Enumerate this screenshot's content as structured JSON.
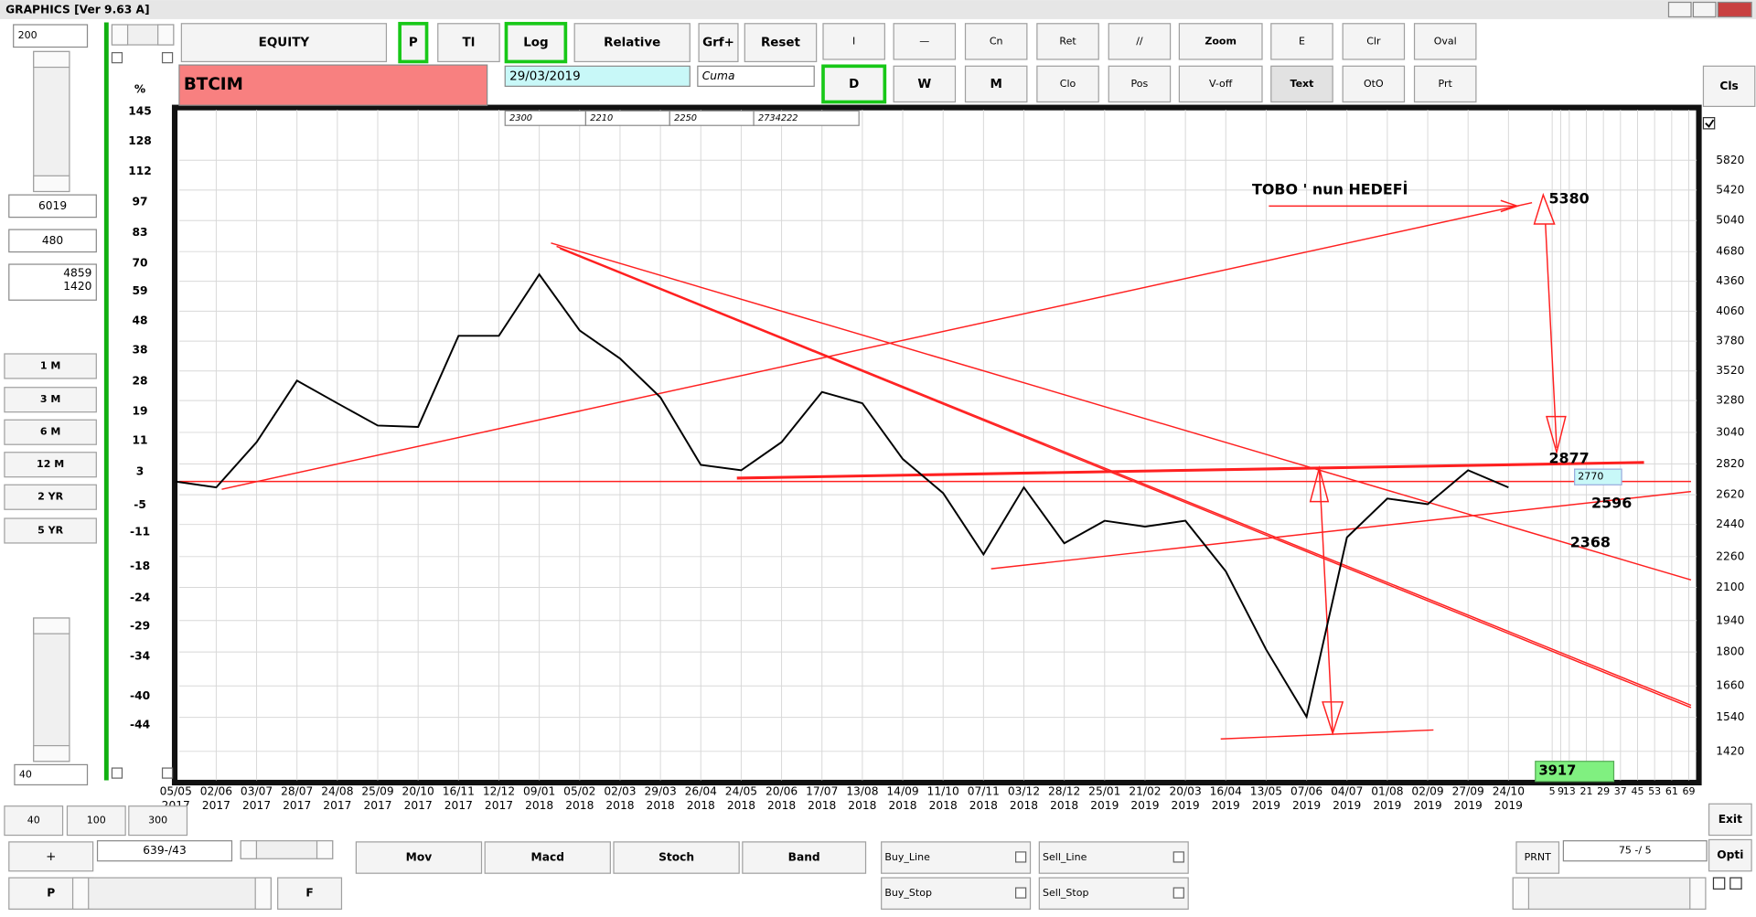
{
  "window": {
    "title": "GRAPHICS  [Ver 9.63 A]"
  },
  "left_panel": {
    "fields": [
      "200",
      "6019",
      "480"
    ],
    "info": [
      "4859",
      "1420"
    ],
    "periods": [
      "1 M",
      "3 M",
      "6 M",
      "12 M",
      "2 YR",
      "5 YR"
    ],
    "bottom_field": "40"
  },
  "toolbar": {
    "row1": [
      "EQUITY",
      "P",
      "Tl",
      "Log",
      "Relative",
      "Grf+",
      "Reset",
      "I",
      "—",
      "Cn",
      "Ret",
      "//",
      "Zoom",
      "E",
      "Clr",
      "Oval"
    ],
    "row2": [
      "D",
      "W",
      "M",
      "Clo",
      "Pos",
      "V-off",
      "Text",
      "OtO",
      "Prt"
    ],
    "close": "Cls"
  },
  "symbol": {
    "name": "BTCIM",
    "date": "29/03/2019",
    "day": "Cuma",
    "fields": [
      "2300",
      "2210",
      "2250",
      "2734222"
    ]
  },
  "chart": {
    "type": "line",
    "log": true,
    "grid": true,
    "color": "#000000",
    "left_axis": {
      "label": "%",
      "ylim": [
        -51,
        146
      ],
      "ticks": [
        145,
        128,
        112,
        97,
        83,
        70,
        59,
        48,
        38,
        28,
        19,
        11,
        3,
        -5,
        -11,
        -18,
        -24,
        -29,
        -34,
        -40,
        -44
      ]
    },
    "right_axis": {
      "ylim": [
        1325,
        6565
      ],
      "ticks": [
        5820,
        5420,
        5040,
        4680,
        4360,
        4060,
        3780,
        3520,
        3280,
        3040,
        2820,
        2620,
        2440,
        2260,
        2100,
        1940,
        1800,
        1660,
        1540,
        1420
      ]
    },
    "x_axis": {
      "dates": [
        {
          "date": "05/05",
          "year": "2017"
        },
        {
          "date": "02/06",
          "year": "2017"
        },
        {
          "date": "03/07",
          "year": "2017"
        },
        {
          "date": "28/07",
          "year": "2017"
        },
        {
          "date": "24/08",
          "year": "2017"
        },
        {
          "date": "25/09",
          "year": "2017"
        },
        {
          "date": "20/10",
          "year": "2017"
        },
        {
          "date": "16/11",
          "year": "2017"
        },
        {
          "date": "12/12",
          "year": "2017"
        },
        {
          "date": "09/01",
          "year": "2018"
        },
        {
          "date": "05/02",
          "year": "2018"
        },
        {
          "date": "02/03",
          "year": "2018"
        },
        {
          "date": "29/03",
          "year": "2018"
        },
        {
          "date": "26/04",
          "year": "2018"
        },
        {
          "date": "24/05",
          "year": "2018"
        },
        {
          "date": "20/06",
          "year": "2018"
        },
        {
          "date": "17/07",
          "year": "2018"
        },
        {
          "date": "13/08",
          "year": "2018"
        },
        {
          "date": "14/09",
          "year": "2018"
        },
        {
          "date": "11/10",
          "year": "2018"
        },
        {
          "date": "07/11",
          "year": "2018"
        },
        {
          "date": "03/12",
          "year": "2018"
        },
        {
          "date": "28/12",
          "year": "2018"
        },
        {
          "date": "25/01",
          "year": "2019"
        },
        {
          "date": "21/02",
          "year": "2019"
        },
        {
          "date": "20/03",
          "year": "2019"
        },
        {
          "date": "16/04",
          "year": "2019"
        },
        {
          "date": "13/05",
          "year": "2019"
        },
        {
          "date": "07/06",
          "year": "2019"
        },
        {
          "date": "04/07",
          "year": "2019"
        },
        {
          "date": "01/08",
          "year": "2019"
        },
        {
          "date": "02/09",
          "year": "2019"
        },
        {
          "date": "27/09",
          "year": "2019"
        },
        {
          "date": "24/10",
          "year": "2019"
        }
      ],
      "future_ticks": [
        5,
        9,
        13,
        21,
        29,
        37,
        45,
        53,
        61,
        69
      ]
    },
    "price": [
      2703,
      2666,
      2970,
      3440,
      3259,
      3090,
      3080,
      3828,
      3828,
      4432,
      3877,
      3626,
      3305,
      2813,
      2777,
      2970,
      3348,
      3259,
      2853,
      2630,
      2272,
      2666,
      2333,
      2462,
      2428,
      2462,
      2182,
      1810,
      1542,
      2366,
      2596,
      2561,
      2777,
      2666
    ],
    "annotations": {
      "target_title": "TOBO  ' nun HEDEFİ",
      "target": "5380",
      "levels": [
        "2877",
        "2770",
        "2596",
        "2368"
      ],
      "box": "3917"
    }
  },
  "bottom": {
    "zoom": [
      "40",
      "100",
      "300"
    ],
    "plus": "+",
    "position": "639-/43",
    "p": "P",
    "f": "F",
    "indicators": [
      "Mov",
      "Macd",
      "Stoch",
      "Band"
    ],
    "lines": [
      "Buy_Line",
      "Sell_Line",
      "Buy_Stop",
      "Sell_Stop"
    ],
    "prnt": "PRNT",
    "ratio": "75 -/ 5",
    "exit": "Exit",
    "opti": "Opti"
  }
}
